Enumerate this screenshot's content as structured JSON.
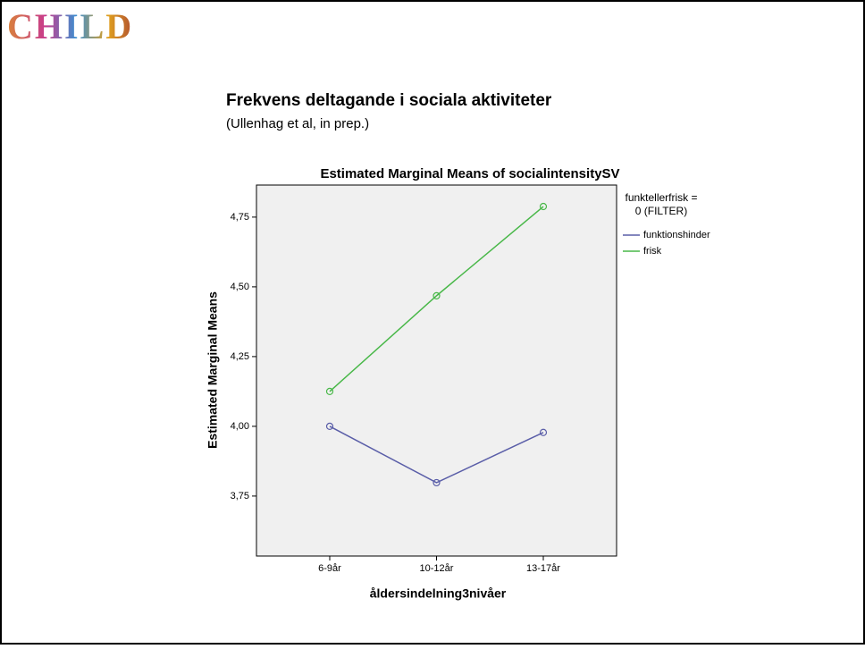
{
  "logo": {
    "text": "CHILD"
  },
  "header": {
    "title": "Frekvens deltagande i sociala aktiviteter",
    "subtitle": "(Ullenhag et al, in prep.)"
  },
  "chart_data": {
    "type": "line",
    "title": "Estimated Marginal Means of socialintensitySV",
    "x_label": "åldersindelning3nivåer",
    "y_label": "Estimated Marginal Means",
    "categories": [
      "6-9år",
      "10-12år",
      "13-17år"
    ],
    "series": [
      {
        "name": "funktionshinder",
        "color": "#5a5ea8",
        "values": [
          4.0,
          3.798,
          3.978
        ]
      },
      {
        "name": "frisk",
        "color": "#49b849",
        "values": [
          4.125,
          4.468,
          4.788
        ]
      }
    ],
    "ylim": [
      3.535,
      4.865
    ],
    "yticks": [
      {
        "value": 3.75,
        "label": "3,75"
      },
      {
        "value": 4.0,
        "label": "4,00"
      },
      {
        "value": 4.25,
        "label": "4,25"
      },
      {
        "value": 4.5,
        "label": "4,50"
      },
      {
        "value": 4.75,
        "label": "4,75"
      }
    ],
    "legend_title": [
      "funktellerfrisk =",
      "0 (FILTER)"
    ],
    "legend_position": "right",
    "plot_background": "#f0f0f0"
  }
}
